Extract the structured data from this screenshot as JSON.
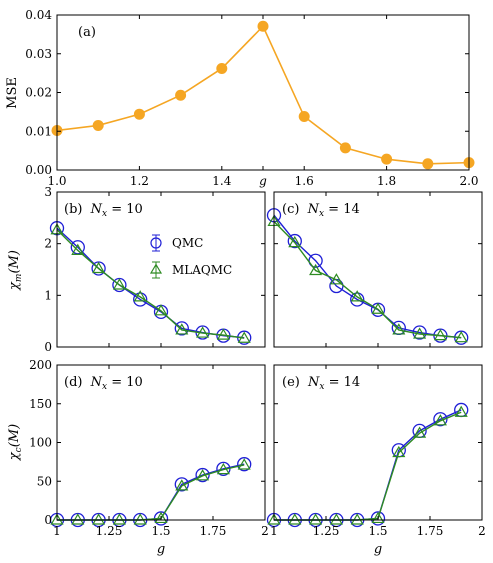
{
  "chart_data": [
    {
      "id": "a",
      "type": "line",
      "panel_label": "(a)",
      "xlabel": "g",
      "ylabel": "MSE",
      "xlim": [
        1.0,
        2.0
      ],
      "ylim": [
        0.0,
        0.04
      ],
      "xticks": [
        "1.0",
        "1.2",
        "1.4",
        "g",
        "1.6",
        "1.8",
        "2.0"
      ],
      "yticks": [
        "0.00",
        "0.01",
        "0.02",
        "0.03",
        "0.04"
      ],
      "color": "#f5a623",
      "x": [
        1.0,
        1.1,
        1.2,
        1.3,
        1.4,
        1.5,
        1.6,
        1.7,
        1.8,
        1.9,
        2.0
      ],
      "y": [
        0.0102,
        0.0115,
        0.0144,
        0.0193,
        0.0262,
        0.0371,
        0.0138,
        0.0057,
        0.0028,
        0.0016,
        0.0019
      ]
    },
    {
      "id": "b",
      "type": "line",
      "panel_label": "(b)",
      "nx_label": "N",
      "nx_sub": "x",
      "nx_value": " = 10",
      "ylabel": "χ",
      "ylabel_sub": "m",
      "ylabel_arg": "(M)",
      "xlim": [
        1.0,
        2.0
      ],
      "ylim": [
        0,
        3
      ],
      "yticks": [
        "0",
        "1",
        "2",
        "3"
      ],
      "legend": [
        "QMC",
        "MLAQMC"
      ],
      "series": [
        {
          "name": "QMC",
          "color": "#1f1fd6",
          "x": [
            1.0,
            1.1,
            1.2,
            1.3,
            1.4,
            1.5,
            1.6,
            1.7,
            1.8,
            1.9
          ],
          "y": [
            2.3,
            1.93,
            1.52,
            1.2,
            0.92,
            0.68,
            0.36,
            0.28,
            0.22,
            0.18
          ]
        },
        {
          "name": "MLAQMC",
          "color": "#2e8b22",
          "x": [
            1.0,
            1.1,
            1.2,
            1.3,
            1.4,
            1.5,
            1.6,
            1.7,
            1.8,
            1.9
          ],
          "y": [
            2.27,
            1.87,
            1.52,
            1.2,
            0.97,
            0.7,
            0.33,
            0.27,
            0.23,
            0.17
          ]
        }
      ]
    },
    {
      "id": "c",
      "type": "line",
      "panel_label": "(c)",
      "nx_label": "N",
      "nx_sub": "x",
      "nx_value": " = 14",
      "xlim": [
        1.0,
        2.0
      ],
      "ylim": [
        0,
        3
      ],
      "series": [
        {
          "name": "QMC",
          "color": "#1f1fd6",
          "x": [
            1.0,
            1.1,
            1.2,
            1.3,
            1.4,
            1.5,
            1.6,
            1.7,
            1.8,
            1.9
          ],
          "y": [
            2.55,
            2.05,
            1.67,
            1.18,
            0.92,
            0.72,
            0.37,
            0.28,
            0.22,
            0.18
          ]
        },
        {
          "name": "MLAQMC",
          "color": "#2e8b22",
          "x": [
            1.0,
            1.1,
            1.2,
            1.3,
            1.4,
            1.5,
            1.6,
            1.7,
            1.8,
            1.9
          ],
          "y": [
            2.43,
            2.02,
            1.48,
            1.3,
            0.97,
            0.73,
            0.33,
            0.25,
            0.22,
            0.18
          ]
        }
      ]
    },
    {
      "id": "d",
      "type": "line",
      "panel_label": "(d)",
      "nx_label": "N",
      "nx_sub": "x",
      "nx_value": " = 10",
      "xlabel": "g",
      "ylabel": "χ",
      "ylabel_sub": "c",
      "ylabel_arg": "(M)",
      "xlim": [
        1.0,
        2.0
      ],
      "ylim": [
        0,
        200
      ],
      "xticks": [
        "1",
        "1.25",
        "1.5",
        "1.75",
        "2"
      ],
      "yticks": [
        "0",
        "50",
        "100",
        "150",
        "200"
      ],
      "series": [
        {
          "name": "QMC",
          "color": "#1f1fd6",
          "x": [
            1.0,
            1.1,
            1.2,
            1.3,
            1.4,
            1.5,
            1.6,
            1.7,
            1.8,
            1.9
          ],
          "y": [
            0,
            0,
            0,
            0,
            0,
            2,
            46,
            58,
            66,
            72
          ]
        },
        {
          "name": "MLAQMC",
          "color": "#2e8b22",
          "x": [
            1.0,
            1.1,
            1.2,
            1.3,
            1.4,
            1.5,
            1.6,
            1.7,
            1.8,
            1.9
          ],
          "y": [
            0,
            0,
            0,
            0,
            0,
            2,
            44,
            57,
            65,
            71
          ]
        }
      ]
    },
    {
      "id": "e",
      "type": "line",
      "panel_label": "(e)",
      "nx_label": "N",
      "nx_sub": "x",
      "nx_value": " = 14",
      "xlabel": "g",
      "xlim": [
        1.0,
        2.0
      ],
      "ylim": [
        0,
        200
      ],
      "xticks": [
        "1",
        "1.25",
        "1.5",
        "1.75",
        "2"
      ],
      "series": [
        {
          "name": "QMC",
          "color": "#1f1fd6",
          "x": [
            1.0,
            1.1,
            1.2,
            1.3,
            1.4,
            1.5,
            1.6,
            1.7,
            1.8,
            1.9
          ],
          "y": [
            0,
            0,
            0,
            0,
            0,
            2,
            90,
            115,
            130,
            142
          ]
        },
        {
          "name": "MLAQMC",
          "color": "#2e8b22",
          "x": [
            1.0,
            1.1,
            1.2,
            1.3,
            1.4,
            1.5,
            1.6,
            1.7,
            1.8,
            1.9
          ],
          "y": [
            0,
            0,
            0,
            0,
            0,
            2,
            87,
            112,
            128,
            139
          ]
        }
      ]
    }
  ]
}
